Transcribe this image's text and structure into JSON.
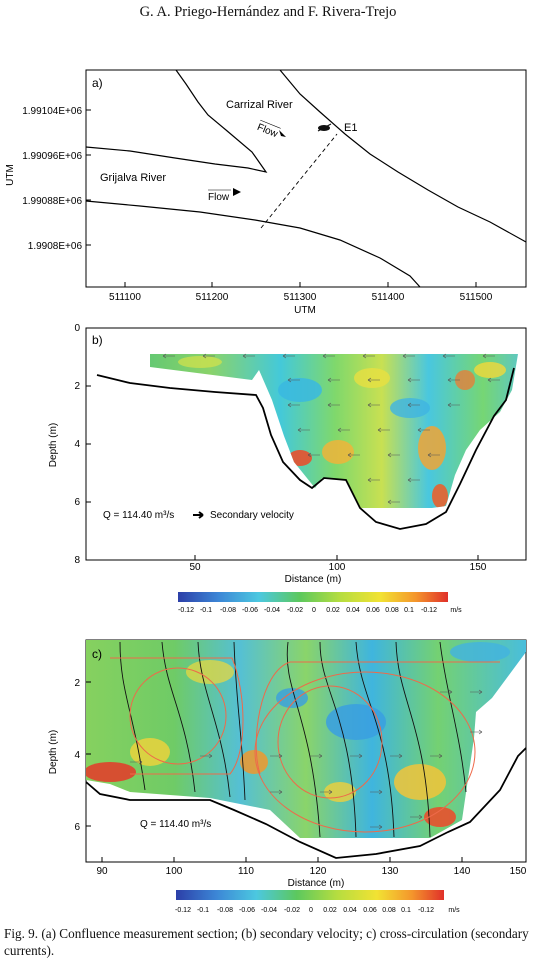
{
  "header": {
    "authors": "G. A. Priego-Hernández and F. Rivera-Trejo"
  },
  "panel_a": {
    "label": "a)",
    "xlabel": "UTM",
    "ylabel": "UTM",
    "xticks": [
      "511100",
      "511200",
      "511300",
      "511400",
      "511500"
    ],
    "yticks": [
      "1.99104E+06",
      "1.99096E+06",
      "1.99088E+06",
      "1.9908E+06"
    ],
    "river1": "Carrizal River",
    "river2": "Grijalva River",
    "flow_label": "Flow",
    "station": "E1"
  },
  "panel_b": {
    "label": "b)",
    "xlabel": "Distance (m)",
    "ylabel": "Depth (m)",
    "xticks": [
      "50",
      "100",
      "150"
    ],
    "yticks": [
      "0",
      "2",
      "4",
      "6",
      "8"
    ],
    "discharge": "Q = 114.40 m³/s",
    "legend_text": "Secondary velocity"
  },
  "colorbar": {
    "ticks": [
      "-0.12",
      "-0.1",
      "-0.08",
      "-0.06",
      "-0.04",
      "-0.02",
      "0",
      "0.02",
      "0.04",
      "0.06",
      "0.08",
      "0.1",
      "-0.12"
    ],
    "unit": "m/s"
  },
  "panel_c": {
    "label": "c)",
    "xlabel": "Distance (m)",
    "ylabel": "Depth (m)",
    "xticks": [
      "90",
      "100",
      "110",
      "120",
      "130",
      "140",
      "150"
    ],
    "yticks": [
      "2",
      "4",
      "6"
    ],
    "discharge": "Q = 114.40 m³/s"
  },
  "caption": {
    "text": "Fig. 9. (a) Confluence measurement section; (b) secondary velocity; c) cross-circulation (secondary currents)."
  }
}
